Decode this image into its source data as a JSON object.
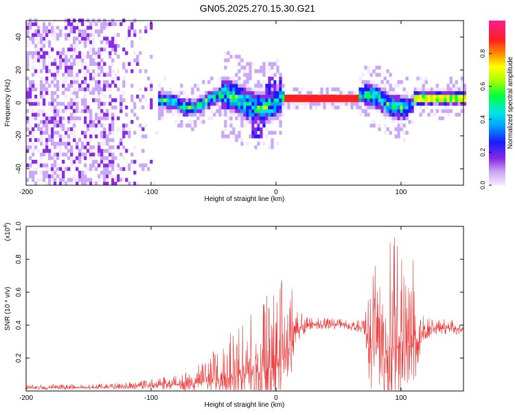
{
  "title": "GN05.2025.270.15.30.G21",
  "chart_data": [
    {
      "type": "heatmap",
      "name": "spectrogram",
      "xlabel": "Height of straight line (km)",
      "ylabel": "Frequency (Hz)",
      "xlim": [
        -200,
        150
      ],
      "ylim": [
        -50,
        50
      ],
      "xticks": [
        -200,
        -100,
        0,
        100
      ],
      "xtick_labels": [
        "-200",
        "-100",
        "0",
        "100"
      ],
      "yticks": [
        -40,
        -20,
        0,
        20,
        40
      ],
      "ytick_labels": [
        "-40",
        "-20",
        "0",
        "20",
        "40"
      ],
      "colorbar": {
        "label": "Normalized spectral amplitude",
        "range": [
          0,
          1
        ],
        "ticks": [
          0.0,
          0.2,
          0.4,
          0.6,
          0.8
        ],
        "tick_labels": [
          "0.0",
          "0.2",
          "0.4",
          "0.6",
          "0.8"
        ],
        "colormap": "rainbow"
      }
    },
    {
      "type": "line",
      "name": "snr",
      "xlabel": "Height of straight line (km)",
      "ylabel": "SNR (10 * v/v)",
      "multiplier_label": "(x10",
      "multiplier_exp": "4",
      "multiplier_close": ")",
      "xlim": [
        -200,
        150
      ],
      "ylim": [
        0,
        1.0
      ],
      "xticks": [
        -200,
        -100,
        0,
        100
      ],
      "xtick_labels": [
        "-200",
        "-100",
        "0",
        "100"
      ],
      "yticks": [
        0.2,
        0.4,
        0.6,
        0.8,
        1.0
      ],
      "ytick_labels": [
        "0.2",
        "0.4",
        "0.6",
        "0.8",
        "1.0"
      ],
      "color": "#ee3333",
      "envelope": [
        {
          "x": -200,
          "base": 0.02,
          "amp": 0.02
        },
        {
          "x": -150,
          "base": 0.02,
          "amp": 0.02
        },
        {
          "x": -110,
          "base": 0.03,
          "amp": 0.03
        },
        {
          "x": -80,
          "base": 0.04,
          "amp": 0.06
        },
        {
          "x": -60,
          "base": 0.05,
          "amp": 0.12
        },
        {
          "x": -40,
          "base": 0.08,
          "amp": 0.25
        },
        {
          "x": -25,
          "base": 0.1,
          "amp": 0.38
        },
        {
          "x": -10,
          "base": 0.12,
          "amp": 0.5
        },
        {
          "x": 0,
          "base": 0.15,
          "amp": 0.55
        },
        {
          "x": 10,
          "base": 0.2,
          "amp": 0.5
        },
        {
          "x": 15,
          "base": 0.35,
          "amp": 0.2
        },
        {
          "x": 25,
          "base": 0.4,
          "amp": 0.05
        },
        {
          "x": 50,
          "base": 0.4,
          "amp": 0.04
        },
        {
          "x": 70,
          "base": 0.38,
          "amp": 0.05
        },
        {
          "x": 75,
          "base": 0.3,
          "amp": 0.5
        },
        {
          "x": 90,
          "base": 0.25,
          "amp": 0.65
        },
        {
          "x": 100,
          "base": 0.3,
          "amp": 0.7
        },
        {
          "x": 110,
          "base": 0.3,
          "amp": 0.5
        },
        {
          "x": 118,
          "base": 0.35,
          "amp": 0.1
        },
        {
          "x": 125,
          "base": 0.38,
          "amp": 0.06
        },
        {
          "x": 150,
          "base": 0.38,
          "amp": 0.06
        }
      ]
    }
  ]
}
